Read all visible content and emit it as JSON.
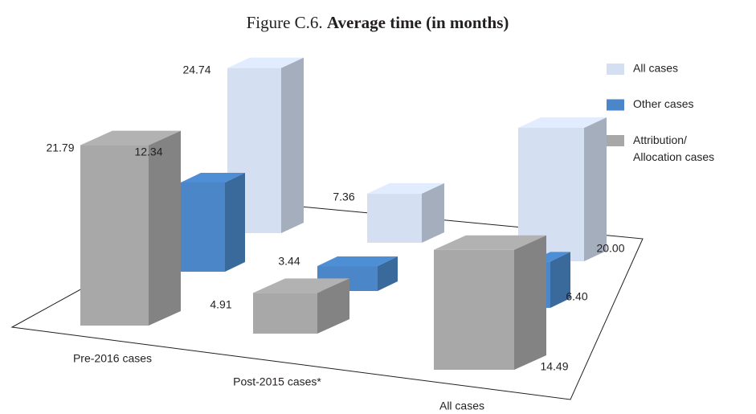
{
  "chart_data": {
    "type": "bar3d",
    "title_prefix": "Figure C.6.",
    "title": "Average time (in months)",
    "categories": [
      "Pre-2016 cases",
      "Post-2015 cases*",
      "All cases"
    ],
    "series": [
      {
        "name": "All cases",
        "color": "#d4dff2",
        "values": [
          24.74,
          7.36,
          20.0
        ],
        "value_labels": [
          "24.74",
          "7.36",
          "20.00"
        ]
      },
      {
        "name": "Other cases",
        "color": "#4a86c8",
        "values": [
          12.34,
          3.44,
          6.4
        ],
        "value_labels": [
          "12.34",
          "3.44",
          "6.40"
        ]
      },
      {
        "name": "Attribution/Allocation cases",
        "color": "#a8a8a8",
        "values": [
          21.79,
          4.91,
          14.49
        ],
        "value_labels": [
          "21.79",
          "4.91",
          "14.49"
        ]
      }
    ],
    "legend": "right"
  }
}
